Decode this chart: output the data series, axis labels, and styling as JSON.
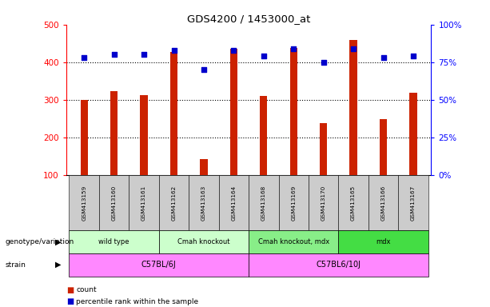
{
  "title": "GDS4200 / 1453000_at",
  "samples": [
    "GSM413159",
    "GSM413160",
    "GSM413161",
    "GSM413162",
    "GSM413163",
    "GSM413164",
    "GSM413168",
    "GSM413169",
    "GSM413170",
    "GSM413165",
    "GSM413166",
    "GSM413167"
  ],
  "counts": [
    300,
    322,
    313,
    427,
    142,
    435,
    311,
    438,
    237,
    458,
    248,
    318
  ],
  "percentile_ranks": [
    78,
    80,
    80,
    83,
    70,
    83,
    79,
    84,
    75,
    84,
    78,
    79
  ],
  "bar_bottom": 100,
  "ylim_left": [
    100,
    500
  ],
  "ylim_right": [
    0,
    100
  ],
  "yticks_left": [
    100,
    200,
    300,
    400,
    500
  ],
  "yticks_right": [
    0,
    25,
    50,
    75,
    100
  ],
  "yticklabels_right": [
    "0%",
    "25%",
    "50%",
    "75%",
    "100%"
  ],
  "bar_color": "#cc2200",
  "dot_color": "#0000cc",
  "bar_width": 0.25,
  "genotype_groups": [
    {
      "label": "wild type",
      "start": 0,
      "end": 2,
      "color": "#ccffcc"
    },
    {
      "label": "Cmah knockout",
      "start": 3,
      "end": 5,
      "color": "#ccffcc"
    },
    {
      "label": "Cmah knockout, mdx",
      "start": 6,
      "end": 8,
      "color": "#88ee88"
    },
    {
      "label": "mdx",
      "start": 9,
      "end": 11,
      "color": "#44dd44"
    }
  ],
  "strain_groups": [
    {
      "label": "C57BL/6J",
      "start": 0,
      "end": 5,
      "color": "#ff88ff"
    },
    {
      "label": "C57BL6/10J",
      "start": 6,
      "end": 11,
      "color": "#ff88ff"
    }
  ],
  "legend_items": [
    {
      "label": "count",
      "color": "#cc2200"
    },
    {
      "label": "percentile rank within the sample",
      "color": "#0000cc"
    }
  ],
  "row_labels": [
    "genotype/variation",
    "strain"
  ],
  "background_color": "#ffffff",
  "tick_label_bg": "#cccccc",
  "dot_size": 18
}
